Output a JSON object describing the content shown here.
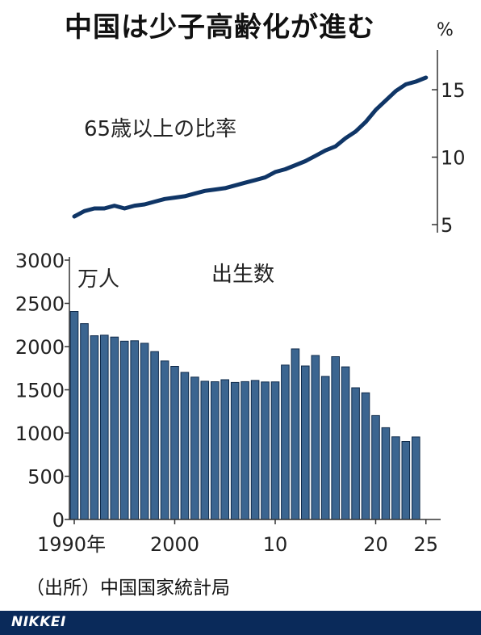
{
  "title": "中国は少子高齢化が進む",
  "source": "（出所）中国国家統計局",
  "brand": "NIKKEI",
  "colors": {
    "line": "#0f3566",
    "bar": "#3b6590",
    "bar_edge": "#0f2a4a",
    "axis": "#333333",
    "footer": "#0a2a5a"
  },
  "chart_data": [
    {
      "type": "line",
      "label": "65歳以上の比率",
      "yunit": "%",
      "ylim": [
        5,
        16.5
      ],
      "yticks": [
        5,
        10,
        15
      ],
      "ytick_labels": [
        "5",
        "10",
        "15"
      ],
      "x": [
        1990,
        1991,
        1992,
        1993,
        1994,
        1995,
        1996,
        1997,
        1998,
        1999,
        2000,
        2001,
        2002,
        2003,
        2004,
        2005,
        2006,
        2007,
        2008,
        2009,
        2010,
        2011,
        2012,
        2013,
        2014,
        2015,
        2016,
        2017,
        2018,
        2019,
        2020,
        2021,
        2022,
        2023,
        2024,
        2025
      ],
      "values": [
        5.6,
        6.0,
        6.2,
        6.2,
        6.4,
        6.2,
        6.4,
        6.5,
        6.7,
        6.9,
        7.0,
        7.1,
        7.3,
        7.5,
        7.6,
        7.7,
        7.9,
        8.1,
        8.3,
        8.5,
        8.9,
        9.1,
        9.4,
        9.7,
        10.1,
        10.5,
        10.8,
        11.4,
        11.9,
        12.6,
        13.5,
        14.2,
        14.9,
        15.4,
        15.6,
        15.9
      ]
    },
    {
      "type": "bar",
      "label": "出生数",
      "yunit": "万人",
      "ylim": [
        0,
        3000
      ],
      "yticks": [
        0,
        500,
        1000,
        1500,
        2000,
        2500,
        3000
      ],
      "ytick_labels": [
        "0",
        "500",
        "1000",
        "1500",
        "2000",
        "2500",
        "3000"
      ],
      "categories": [
        1990,
        1991,
        1992,
        1993,
        1994,
        1995,
        1996,
        1997,
        1998,
        1999,
        2000,
        2001,
        2002,
        2003,
        2004,
        2005,
        2006,
        2007,
        2008,
        2009,
        2010,
        2011,
        2012,
        2013,
        2014,
        2015,
        2016,
        2017,
        2018,
        2019,
        2020,
        2021,
        2022,
        2023,
        2024
      ],
      "values": [
        2407,
        2265,
        2125,
        2132,
        2110,
        2063,
        2067,
        2038,
        1942,
        1834,
        1771,
        1702,
        1647,
        1599,
        1593,
        1617,
        1585,
        1594,
        1608,
        1591,
        1592,
        1786,
        1973,
        1776,
        1897,
        1655,
        1883,
        1765,
        1523,
        1465,
        1202,
        1062,
        956,
        902,
        954
      ],
      "xtick_labels": [
        {
          "year": 1990,
          "label": "1990年"
        },
        {
          "year": 2000,
          "label": "2000"
        },
        {
          "year": 2010,
          "label": "10"
        },
        {
          "year": 2020,
          "label": "20"
        },
        {
          "year": 2025,
          "label": "25"
        }
      ]
    }
  ]
}
